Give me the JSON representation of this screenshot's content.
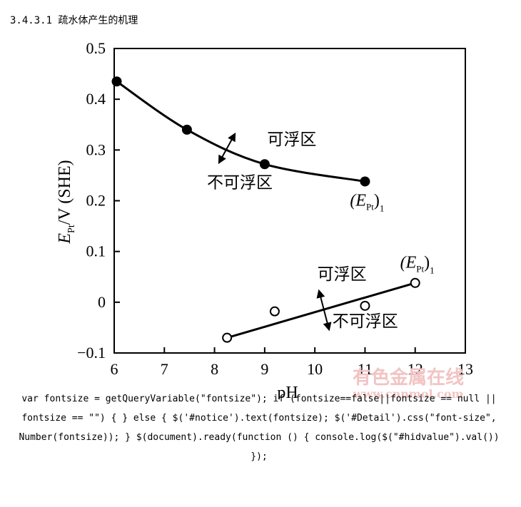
{
  "page": {
    "section_heading": "3.4.3.1 疏水体产生的机理",
    "code_text": "var fontsize = getQueryVariable(\"fontsize\"); if (fontsize==false||fontsize == null || fontsize == \"\") { } else { $('#notice').text(fontsize); $('#Detail').css(\"font-size\", Number(fontsize)); } $(document).ready(function () { console.log($(\"#hidvalue\").val()) });"
  },
  "watermark": {
    "line1": "有色金属在线",
    "line2": "www.cnnmol.com"
  },
  "chart_data": {
    "type": "scatter",
    "xlabel": "pH",
    "ylabel_main": "E",
    "ylabel_sub": "Pt",
    "ylabel_rest": "/V (SHE)",
    "xlim": [
      6,
      13
    ],
    "ylim": [
      -0.1,
      0.5
    ],
    "xticks": [
      "6",
      "7",
      "8",
      "9",
      "10",
      "11",
      "12",
      "13"
    ],
    "yticks": [
      "−0.1",
      "0",
      "0.1",
      "0.2",
      "0.3",
      "0.4",
      "0.5"
    ],
    "grid": false,
    "series": [
      {
        "marker": "filled-circle",
        "points": [
          [
            6.05,
            0.435
          ],
          [
            7.45,
            0.34
          ],
          [
            9.0,
            0.272
          ],
          [
            11.0,
            0.238
          ]
        ],
        "curve": "smooth"
      },
      {
        "marker": "open-circle",
        "points": [
          [
            8.25,
            -0.07
          ],
          [
            9.2,
            -0.018
          ],
          [
            11.0,
            -0.007
          ],
          [
            12.0,
            0.038
          ]
        ],
        "fit_line": [
          [
            8.25,
            -0.07
          ],
          [
            12.0,
            0.038
          ]
        ]
      }
    ],
    "annotations": [
      {
        "id": "upper-float",
        "text": "可浮区",
        "x": 9.05,
        "y": 0.31
      },
      {
        "id": "upper-nonfloat",
        "text": "不可浮区",
        "x": 7.85,
        "y": 0.225
      },
      {
        "id": "upper-ept",
        "text_main": "(E",
        "text_sub": "Pt",
        "text_close": ")",
        "text_index": "1",
        "x": 10.7,
        "y": 0.19
      },
      {
        "id": "lower-float",
        "text": "可浮区",
        "x": 10.05,
        "y": 0.045
      },
      {
        "id": "lower-nonfloat",
        "text": "不可浮区",
        "x": 10.35,
        "y": -0.048
      },
      {
        "id": "lower-ept",
        "text_main": "(E",
        "text_sub": "Pt",
        "text_close": ")",
        "text_index": "1",
        "x": 11.7,
        "y": 0.068
      }
    ]
  }
}
